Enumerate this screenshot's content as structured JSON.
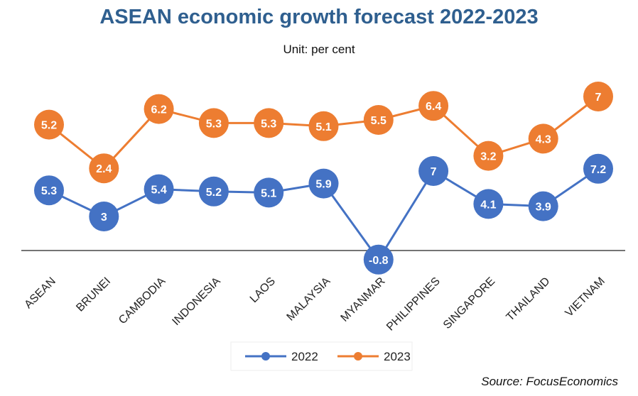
{
  "chart_data": {
    "type": "line",
    "title": "ASEAN economic growth forecast 2022-2023",
    "subtitle": "Unit: per cent",
    "source": "Source: FocusEconomics",
    "xlabel": "",
    "ylabel": "",
    "categories": [
      "ASEAN",
      "BRUNEI",
      "CAMBODIA",
      "INDONESIA",
      "LAOS",
      "MALAYSIA",
      "MYANMAR",
      "PHILIPPINES",
      "SINGAPORE",
      "THAILAND",
      "VIETNAM"
    ],
    "series": [
      {
        "name": "2022",
        "color": "#4472c4",
        "values": [
          5.3,
          3,
          5.4,
          5.2,
          5.1,
          5.9,
          -0.8,
          7,
          4.1,
          3.9,
          7.2
        ]
      },
      {
        "name": "2023",
        "color": "#ed7d31",
        "values": [
          5.2,
          2.4,
          6.2,
          5.3,
          5.3,
          5.1,
          5.5,
          6.4,
          3.2,
          4.3,
          7
        ]
      }
    ],
    "grid": false,
    "legend": "bottom-center",
    "data_labels": true
  }
}
